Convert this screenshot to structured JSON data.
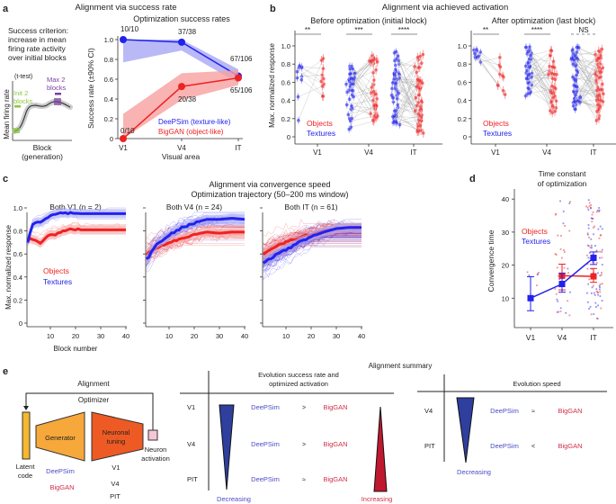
{
  "colors": {
    "objects": "#ee2222",
    "textures": "#2222ee",
    "objects_light": "#f7a0a0",
    "textures_light": "#a8a8f5",
    "init": "#8cc63f",
    "max": "#7b3fa0",
    "generator": "#f7a83a",
    "tuning": "#ee5a24",
    "latent": "#f5b82e",
    "neuron": "#f5c6d6",
    "tri_blue": "#2e3f9e",
    "tri_red": "#c0182e"
  },
  "panel_labels": {
    "a": "a",
    "b": "b",
    "c": "c",
    "d": "d",
    "e": "e"
  },
  "panel_a": {
    "title": "Alignment via success rate",
    "criterion": [
      "Success criterion:",
      "increase in mean",
      "firing rate activity",
      "over initial blocks"
    ],
    "ttest": "(t-test)",
    "init_label": [
      "Init 2",
      "blocks"
    ],
    "max_label": [
      "Max 2",
      "blocks"
    ],
    "mini_ylabel": "Mean firing rate",
    "mini_xlabel": [
      "Block",
      "(generation)"
    ]
  },
  "panel_b": {
    "title": "Alignment via achieved activation"
  },
  "panel_c": {
    "title": "Alignment via convergence speed",
    "subtitle": "Optimization trajectory (50–200 ms window)"
  },
  "panel_e": {
    "summary_title": "Alignment summary",
    "alignment": "Alignment",
    "optimizer": "Optimizer",
    "generator": "Generator",
    "tuning": [
      "Neuronal",
      "tuning"
    ],
    "neuron": [
      "Neuron",
      "activation"
    ],
    "latent": [
      "Latent",
      "code"
    ],
    "deepsim": "DeePSim",
    "biggan": "BigGAN",
    "areas": [
      "V1",
      "V4",
      "PIT"
    ],
    "success_title": [
      "Evolution success rate  and",
      "optimized activation"
    ],
    "success_rows": [
      {
        "area": "V1",
        "op": ">"
      },
      {
        "area": "V4",
        "op": ">"
      },
      {
        "area": "PIT",
        "op": "≈"
      }
    ],
    "decreasing": "Decreasing",
    "increasing": "Increasing",
    "speed_title": "Evolution speed",
    "speed_rows": [
      {
        "area": "V4",
        "op": "≈"
      },
      {
        "area": "PIT",
        "op": "<"
      }
    ]
  },
  "chart_data": [
    {
      "id": "a",
      "type": "line",
      "title": "Optimization success rates",
      "xlabel": "Visual area",
      "ylabel": "Success rate (±90% CI)",
      "categories": [
        "V1",
        "V4",
        "IT"
      ],
      "ylim": [
        0,
        1
      ],
      "yticks": [
        0,
        0.2,
        0.4,
        0.6,
        0.8,
        1.0
      ],
      "ytick_labels": [
        "0",
        "0.2",
        "0.4",
        "0.6",
        "0.8",
        "1.0"
      ],
      "series": [
        {
          "name": "DeePSim (texture-like)",
          "color": "#2222ee",
          "values": [
            1.0,
            0.974,
            0.632
          ],
          "ci_low": [
            0.77,
            0.89,
            0.56
          ],
          "ci_high": [
            1.0,
            1.0,
            0.7
          ],
          "labels": [
            "10/10",
            "37/38",
            "67/106"
          ]
        },
        {
          "name": "BigGAN (object-like)",
          "color": "#ee2222",
          "values": [
            0.0,
            0.526,
            0.613
          ],
          "ci_low": [
            0.0,
            0.39,
            0.54
          ],
          "ci_high": [
            0.25,
            0.66,
            0.69
          ],
          "labels": [
            "0/10",
            "20/38",
            "65/106"
          ]
        }
      ]
    },
    {
      "id": "b1",
      "type": "scatter",
      "title": "Before optimization (initial block)",
      "ylabel": "Max. normalized response",
      "categories": [
        "V1",
        "V4",
        "IT"
      ],
      "ylim": [
        0,
        1.1
      ],
      "yticks": [
        0,
        0.2,
        0.4,
        0.6,
        0.8,
        1.0
      ],
      "ytick_labels": [
        "0",
        "0.2",
        "0.4",
        "0.6",
        "0.8",
        "1.0"
      ],
      "significance": [
        "**",
        "***",
        "****"
      ],
      "legend": [
        "Objects",
        "Textures"
      ],
      "texture_range": [
        [
          0.18,
          0.82
        ],
        [
          0.05,
          0.78
        ],
        [
          0.12,
          0.95
        ]
      ],
      "object_range": [
        [
          0.42,
          0.9
        ],
        [
          0.17,
          0.91
        ],
        [
          0.03,
          0.93
        ]
      ],
      "n": [
        10,
        38,
        106
      ]
    },
    {
      "id": "b2",
      "type": "scatter",
      "title": "After optimization (last block)",
      "categories": [
        "V1",
        "V4",
        "IT"
      ],
      "ylim": [
        0,
        1.1
      ],
      "yticks": [
        0,
        0.2,
        0.4,
        0.6,
        0.8,
        1.0
      ],
      "ytick_labels": [
        "0",
        "0.2",
        "0.4",
        "0.6",
        "0.8",
        "1.0"
      ],
      "significance": [
        "**",
        "****",
        "NS"
      ],
      "legend": [
        "Objects",
        "Textures"
      ],
      "texture_range": [
        [
          0.8,
          0.97
        ],
        [
          0.45,
          1.0
        ],
        [
          0.28,
          1.0
        ]
      ],
      "object_range": [
        [
          0.35,
          0.92
        ],
        [
          0.25,
          0.96
        ],
        [
          0.13,
          1.0
        ]
      ],
      "n": [
        10,
        38,
        106
      ]
    },
    {
      "id": "c1",
      "type": "line",
      "title": "Both V1 (n = 2)",
      "xlabel": "Block number",
      "ylabel": "Max. normalized response",
      "xlim": [
        0,
        40
      ],
      "ylim": [
        0,
        1
      ],
      "xticks": [
        10,
        20,
        30,
        40
      ],
      "yticks": [
        0,
        0.2,
        0.4,
        0.6,
        0.8,
        1.0
      ],
      "ytick_labels": [
        "0",
        "0.2",
        "0.4",
        "0.6",
        "0.8",
        "1.0"
      ],
      "legend": [
        "Objects",
        "Textures"
      ],
      "n_traces": 2,
      "blocks": [
        1,
        3,
        6,
        9,
        12,
        15,
        18,
        21,
        40
      ],
      "textures_mean": [
        0.7,
        0.86,
        0.88,
        0.92,
        0.94,
        0.96,
        0.96,
        0.95,
        0.95
      ],
      "objects_mean": [
        0.72,
        0.73,
        0.7,
        0.76,
        0.77,
        0.8,
        0.81,
        0.81,
        0.81
      ]
    },
    {
      "id": "c2",
      "type": "line",
      "title": "Both V4 (n = 24)",
      "xlim": [
        0,
        40
      ],
      "ylim": [
        0,
        1
      ],
      "xticks": [
        10,
        20,
        30,
        40
      ],
      "n_traces": 24,
      "blocks": [
        1,
        5,
        10,
        15,
        20,
        25,
        30,
        35,
        40
      ],
      "textures_mean": [
        0.55,
        0.68,
        0.76,
        0.83,
        0.87,
        0.9,
        0.9,
        0.91,
        0.9
      ],
      "objects_mean": [
        0.6,
        0.65,
        0.7,
        0.73,
        0.77,
        0.79,
        0.78,
        0.79,
        0.79
      ]
    },
    {
      "id": "c3",
      "type": "line",
      "title": "Both IT (n = 61)",
      "xlim": [
        0,
        40
      ],
      "ylim": [
        0,
        1
      ],
      "xticks": [
        10,
        20,
        30,
        40
      ],
      "n_traces": 61,
      "blocks": [
        1,
        5,
        10,
        15,
        20,
        25,
        30,
        35,
        40
      ],
      "textures_mean": [
        0.52,
        0.58,
        0.64,
        0.7,
        0.75,
        0.79,
        0.82,
        0.83,
        0.83
      ],
      "objects_mean": [
        0.6,
        0.66,
        0.7,
        0.74,
        0.77,
        0.8,
        0.82,
        0.83,
        0.83
      ]
    },
    {
      "id": "d",
      "type": "scatter",
      "title": "Time constant\nof optimization",
      "ylabel": "Convergence time",
      "categories": [
        "V1",
        "V4",
        "IT"
      ],
      "ylim": [
        0,
        42
      ],
      "yticks": [
        10,
        20,
        30,
        40
      ],
      "legend": [
        "Objects",
        "Textures"
      ],
      "series": [
        {
          "name": "Objects",
          "values": [
            null,
            16.8,
            16.6
          ],
          "err_low": [
            null,
            12.5,
            14.8
          ],
          "err_high": [
            null,
            20.3,
            19.0
          ]
        },
        {
          "name": "Textures",
          "values": [
            10.0,
            14.3,
            22.2
          ],
          "err_low": [
            6.2,
            11.8,
            20.2
          ],
          "err_high": [
            16.5,
            17.5,
            24.0
          ]
        }
      ]
    }
  ]
}
